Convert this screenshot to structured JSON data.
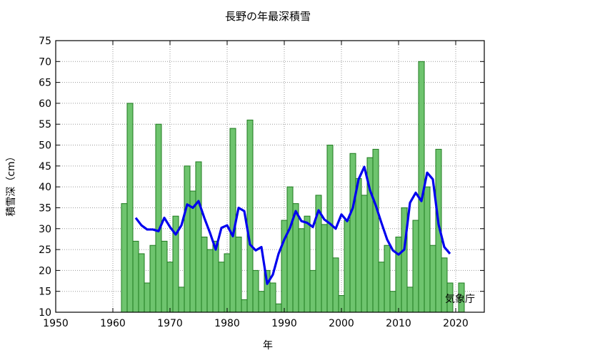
{
  "chart_data": {
    "type": "bar",
    "title": "長野の年最深積雪",
    "xlabel": "年",
    "ylabel": "積雪深（cm）",
    "credit": "気象庁",
    "xlim": [
      1950,
      2025
    ],
    "ylim": [
      10,
      75
    ],
    "xticks": [
      1950,
      1960,
      1970,
      1980,
      1990,
      2000,
      2010,
      2020
    ],
    "yticks": [
      10,
      15,
      20,
      25,
      30,
      35,
      40,
      45,
      50,
      55,
      60,
      65,
      70,
      75
    ],
    "grid": true,
    "bar_color": "#6ec46e",
    "bar_edge_color": "#1e7a1e",
    "line_color": "#0000ee",
    "series": [
      {
        "type": "bar",
        "x": [
          1962,
          1963,
          1964,
          1965,
          1966,
          1967,
          1968,
          1969,
          1970,
          1971,
          1972,
          1973,
          1974,
          1975,
          1976,
          1977,
          1978,
          1979,
          1980,
          1981,
          1982,
          1983,
          1984,
          1985,
          1986,
          1987,
          1988,
          1989,
          1990,
          1991,
          1992,
          1993,
          1994,
          1995,
          1996,
          1997,
          1998,
          1999,
          2000,
          2001,
          2002,
          2003,
          2004,
          2005,
          2006,
          2007,
          2008,
          2009,
          2010,
          2011,
          2012,
          2013,
          2014,
          2015,
          2016,
          2017,
          2018,
          2019,
          2020,
          2021
        ],
        "values": [
          36,
          60,
          27,
          24,
          17,
          26,
          55,
          27,
          22,
          33,
          16,
          45,
          39,
          46,
          28,
          25,
          27,
          22,
          24,
          54,
          28,
          13,
          56,
          20,
          15,
          20,
          17,
          12,
          32,
          40,
          36,
          30,
          33,
          20,
          38,
          31,
          50,
          23,
          14,
          32,
          48,
          42,
          38,
          47,
          49,
          22,
          26,
          15,
          28,
          35,
          16,
          32,
          70,
          40,
          26,
          49,
          23,
          17,
          10,
          17
        ]
      },
      {
        "type": "line",
        "x": [
          1964,
          1965,
          1966,
          1967,
          1968,
          1969,
          1970,
          1971,
          1972,
          1973,
          1974,
          1975,
          1976,
          1977,
          1978,
          1979,
          1980,
          1981,
          1982,
          1983,
          1984,
          1985,
          1986,
          1987,
          1988,
          1989,
          1990,
          1991,
          1992,
          1993,
          1994,
          1995,
          1996,
          1997,
          1998,
          1999,
          2000,
          2001,
          2002,
          2003,
          2004,
          2005,
          2006,
          2007,
          2008,
          2009,
          2010,
          2011,
          2012,
          2013,
          2014,
          2015,
          2016,
          2017,
          2018,
          2019
        ],
        "values": [
          32.6,
          30.8,
          29.8,
          29.8,
          29.4,
          32.6,
          30.4,
          28.6,
          30.8,
          35.8,
          35.0,
          36.6,
          32.6,
          29.0,
          25.0,
          30.2,
          30.8,
          28.2,
          35.0,
          34.2,
          26.2,
          24.8,
          25.6,
          16.8,
          19.0,
          24.0,
          27.4,
          30.2,
          34.2,
          31.8,
          31.4,
          30.4,
          34.4,
          32.2,
          31.2,
          30.0,
          33.4,
          31.8,
          35.0,
          41.8,
          44.8,
          39.2,
          35.6,
          31.4,
          27.4,
          24.8,
          23.8,
          25.0,
          36.2,
          38.6,
          36.6,
          43.4,
          41.8,
          31.0,
          25.6,
          24.0
        ]
      }
    ]
  }
}
